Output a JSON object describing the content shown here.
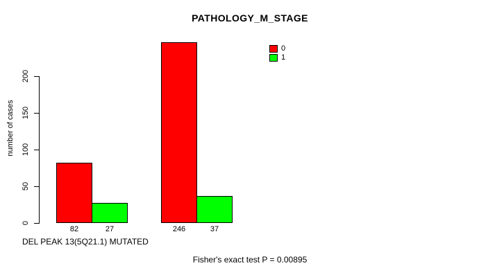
{
  "chart_data": {
    "type": "bar",
    "title": "PATHOLOGY_M_STAGE",
    "xlabel": "DEL PEAK 13(5Q21.1) MUTATED",
    "ylabel": "number of cases",
    "categories": [
      "",
      ""
    ],
    "series": [
      {
        "name": "0",
        "color": "#ff0000",
        "values": [
          82,
          246
        ]
      },
      {
        "name": "1",
        "color": "#00ff00",
        "values": [
          27,
          37
        ]
      }
    ],
    "bar_value_labels": [
      [
        "82",
        "246"
      ],
      [
        "27",
        "37"
      ]
    ],
    "show_values_below_bars": true,
    "yticks": [
      0,
      50,
      100,
      150,
      200
    ],
    "ylim": [
      0,
      250
    ],
    "grid": false,
    "legend_position": "top-right",
    "legend": [
      {
        "label": "0",
        "color": "#ff0000"
      },
      {
        "label": "1",
        "color": "#00ff00"
      }
    ],
    "annotation": "Fisher's exact test P = 0.00895"
  }
}
